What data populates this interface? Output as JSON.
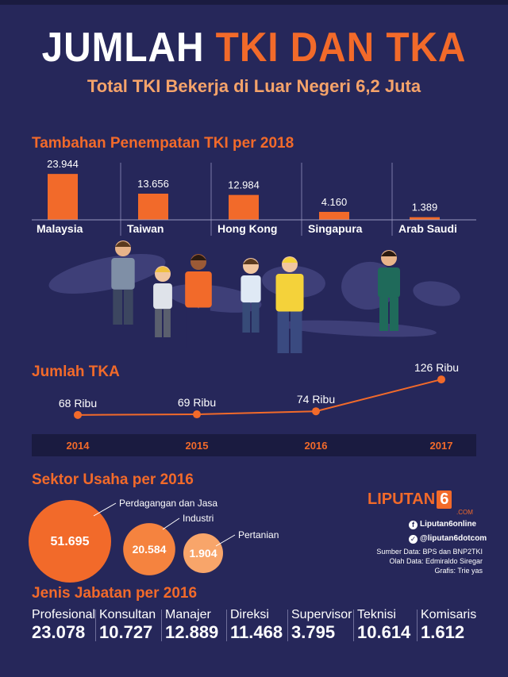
{
  "header": {
    "title_white": "JUMLAH",
    "title_orange": "TKI DAN TKA",
    "subtitle": "Total TKI Bekerja di Luar Negeri 6,2 Juta"
  },
  "colors": {
    "background": "#26275a",
    "accent": "#f26a2a",
    "accent_light": "#f5a36a",
    "timeline_band": "#1a1b40"
  },
  "chart_data": [
    {
      "type": "bar",
      "title": "Tambahan Penempatan TKI per 2018",
      "categories": [
        "Malaysia",
        "Taiwan",
        "Hong Kong",
        "Singapura",
        "Arab Saudi"
      ],
      "values": [
        23944,
        13656,
        12984,
        4160,
        1389
      ],
      "value_labels": [
        "23.944",
        "13.656",
        "12.984",
        "4.160",
        "1.389"
      ],
      "ylim": [
        0,
        24000
      ]
    },
    {
      "type": "line",
      "title": "Jumlah TKA",
      "x": [
        "2014",
        "2015",
        "2016",
        "2017"
      ],
      "values": [
        68,
        69,
        74,
        126
      ],
      "value_labels": [
        "68 Ribu",
        "69 Ribu",
        "74 Ribu",
        "126 Ribu"
      ]
    },
    {
      "type": "bubble",
      "title": "Sektor Usaha per 2016",
      "categories": [
        "Perdagangan dan Jasa",
        "Industri",
        "Pertanian"
      ],
      "values": [
        51695,
        20584,
        1904
      ],
      "value_labels": [
        "51.695",
        "20.584",
        "1.904"
      ]
    },
    {
      "type": "table",
      "title": "Jenis Jabatan per 2016",
      "categories": [
        "Profesional",
        "Konsultan",
        "Manajer",
        "Direksi",
        "Supervisor",
        "Teknisi",
        "Komisaris"
      ],
      "values": [
        23078,
        10727,
        12889,
        11468,
        3795,
        10614,
        1612
      ],
      "value_labels": [
        "23.078",
        "10.727",
        "12.889",
        "11.468",
        "3.795",
        "10.614",
        "1.612"
      ]
    }
  ],
  "brand": {
    "name": "LIPUTAN",
    "number": "6",
    "domain": ".COM",
    "facebook": "Liputan6online",
    "twitter": "@liputan6dotcom",
    "facebook_icon": "facebook-icon",
    "twitter_icon": "twitter-icon"
  },
  "credits": [
    "Sumber Data: BPS dan BNP2TKI",
    "Olah Data: Edmiraldo Siregar",
    "Grafis: Trie yas"
  ]
}
